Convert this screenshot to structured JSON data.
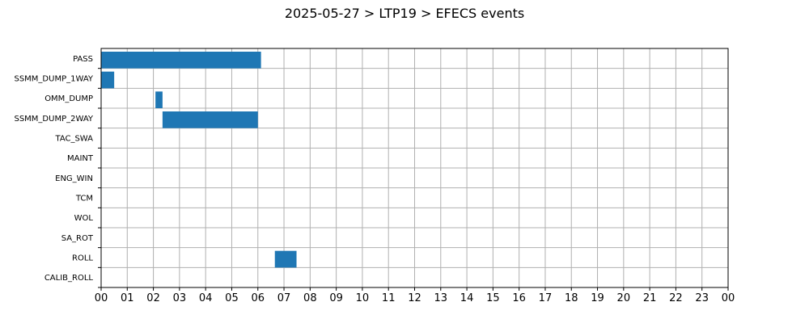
{
  "chart_data": {
    "type": "bar",
    "orientation": "horizontal",
    "title": "2025-05-27 > LTP19 > EFECS events",
    "xlabel": "",
    "ylabel": "",
    "x_unit": "hour",
    "xlim": [
      0,
      24
    ],
    "x_tick_labels": [
      "00",
      "01",
      "02",
      "03",
      "04",
      "05",
      "06",
      "07",
      "08",
      "09",
      "10",
      "11",
      "12",
      "13",
      "14",
      "15",
      "16",
      "17",
      "18",
      "19",
      "20",
      "21",
      "22",
      "23",
      "00"
    ],
    "categories": [
      "PASS",
      "SSMM_DUMP_1WAY",
      "OMM_DUMP",
      "SSMM_DUMP_2WAY",
      "TAC_SWA",
      "MAINT",
      "ENG_WIN",
      "TCM",
      "WOL",
      "SA_ROT",
      "ROLL",
      "CALIB_ROLL"
    ],
    "events": [
      {
        "category": "PASS",
        "start": 0.0,
        "end": 6.12
      },
      {
        "category": "SSMM_DUMP_1WAY",
        "start": 0.0,
        "end": 0.5
      },
      {
        "category": "OMM_DUMP",
        "start": 2.08,
        "end": 2.35
      },
      {
        "category": "SSMM_DUMP_2WAY",
        "start": 2.35,
        "end": 6.0
      },
      {
        "category": "ROLL",
        "start": 6.65,
        "end": 7.48
      }
    ],
    "bar_color": "#1f77b4",
    "grid": true,
    "legend": "none"
  }
}
